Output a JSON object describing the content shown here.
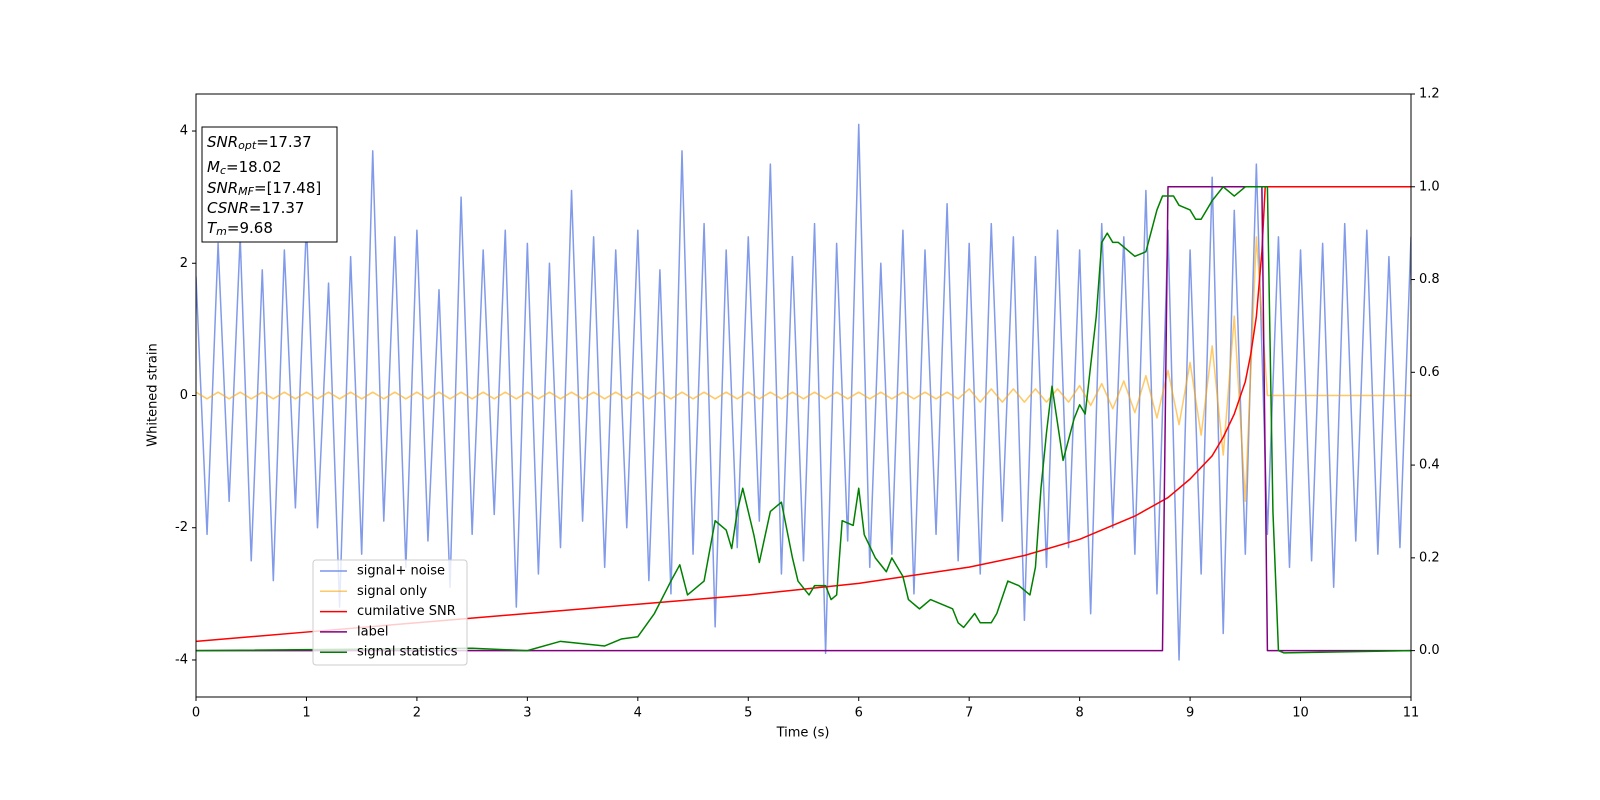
{
  "chart_data": {
    "type": "line",
    "x_label": "Time (s)",
    "y_label": "Whitened strain",
    "xlim": [
      0,
      11
    ],
    "xticks": [
      0,
      1,
      2,
      3,
      4,
      5,
      6,
      7,
      8,
      9,
      10,
      11
    ],
    "ylim": [
      -4.56,
      4.56
    ],
    "yticks": [
      -4,
      -2,
      0,
      2,
      4
    ],
    "y2lim": [
      -0.1,
      1.2
    ],
    "y2ticks": [
      {
        "value": 0,
        "label": "0.0"
      },
      {
        "value": 0.2,
        "label": "0.2"
      },
      {
        "value": 0.4,
        "label": "0.4"
      },
      {
        "value": 0.6,
        "label": "0.6"
      },
      {
        "value": 0.8,
        "label": "0.8"
      },
      {
        "value": 1.0,
        "label": "1.0"
      },
      {
        "value": 1.2,
        "label": "1.2"
      }
    ],
    "annotations": [
      {
        "symbol": "SNR",
        "sub": "opt",
        "text": "=17.37"
      },
      {
        "symbol": "M",
        "sub": "c",
        "text": "=18.02"
      },
      {
        "symbol": "SNR",
        "sub": "MF",
        "text": "=[17.48]"
      },
      {
        "symbol": "CSNR",
        "text": "=17.37"
      },
      {
        "symbol": "T",
        "sub": "m",
        "text": "=9.68"
      }
    ],
    "x": [
      0,
      0.1,
      0.2,
      0.3,
      0.4,
      0.5,
      0.6,
      0.7,
      0.8,
      0.9,
      1,
      1.1,
      1.2,
      1.3,
      1.4,
      1.5,
      1.6,
      1.7,
      1.8,
      1.9,
      2,
      2.1,
      2.2,
      2.3,
      2.4,
      2.5,
      2.6,
      2.7,
      2.8,
      2.9,
      3,
      3.1,
      3.2,
      3.3,
      3.4,
      3.5,
      3.6,
      3.7,
      3.8,
      3.9,
      4,
      4.1,
      4.2,
      4.3,
      4.4,
      4.5,
      4.6,
      4.7,
      4.8,
      4.9,
      5,
      5.1,
      5.2,
      5.3,
      5.4,
      5.5,
      5.6,
      5.7,
      5.8,
      5.9,
      6,
      6.1,
      6.2,
      6.3,
      6.4,
      6.5,
      6.6,
      6.7,
      6.8,
      6.9,
      7,
      7.1,
      7.2,
      7.3,
      7.4,
      7.5,
      7.6,
      7.7,
      7.8,
      7.9,
      8,
      8.1,
      8.2,
      8.3,
      8.4,
      8.5,
      8.6,
      8.7,
      8.8,
      8.9,
      9,
      9.1,
      9.2,
      9.3,
      9.4,
      9.5,
      9.6,
      9.7,
      9.8,
      9.9,
      10,
      10.1,
      10.2,
      10.3,
      10.4,
      10.5,
      10.6,
      10.7,
      10.8,
      10.9,
      11
    ],
    "series": [
      {
        "name": "signal+ noise",
        "color": "#7a95e8",
        "values": [
          1.8,
          -2.1,
          2.3,
          -1.6,
          2.4,
          -2.5,
          1.9,
          -2.8,
          2.2,
          -1.7,
          2.6,
          -2.0,
          1.7,
          -3.2,
          2.1,
          -2.4,
          3.7,
          -1.9,
          2.4,
          -2.6,
          2.5,
          -2.2,
          1.6,
          -2.9,
          3.0,
          -2.1,
          2.2,
          -1.8,
          2.5,
          -3.2,
          2.3,
          -2.7,
          2.0,
          -2.3,
          3.1,
          -1.9,
          2.4,
          -2.6,
          2.2,
          -2.0,
          2.5,
          -2.8,
          1.9,
          -3.0,
          3.7,
          -2.4,
          2.6,
          -3.5,
          2.2,
          -2.3,
          2.4,
          -1.9,
          3.5,
          -2.7,
          2.1,
          -2.5,
          2.6,
          -3.9,
          2.3,
          -2.2,
          4.1,
          -2.6,
          2.0,
          -2.4,
          2.5,
          -3.0,
          2.2,
          -2.1,
          2.9,
          -2.5,
          2.3,
          -2.7,
          2.6,
          -1.9,
          2.4,
          -3.4,
          2.1,
          -2.6,
          2.5,
          -2.3,
          2.2,
          -3.3,
          2.6,
          -2.0,
          2.4,
          -2.4,
          3.1,
          -3.0,
          2.5,
          -4.0,
          2.2,
          -2.7,
          3.3,
          -3.6,
          2.8,
          -2.4,
          3.5,
          -2.1,
          2.4,
          -2.6,
          2.2,
          -2.5,
          2.3,
          -2.9,
          2.6,
          -2.2,
          2.5,
          -2.4,
          2.1,
          -2.3,
          2.4
        ]
      },
      {
        "name": "signal only",
        "color": "#ffa500",
        "values": [
          0.05,
          -0.05,
          0.05,
          -0.05,
          0.05,
          -0.05,
          0.05,
          -0.05,
          0.05,
          -0.05,
          0.05,
          -0.05,
          0.05,
          -0.05,
          0.05,
          -0.05,
          0.05,
          -0.05,
          0.05,
          -0.05,
          0.05,
          -0.05,
          0.05,
          -0.05,
          0.05,
          -0.05,
          0.05,
          -0.05,
          0.05,
          -0.05,
          0.05,
          -0.05,
          0.05,
          -0.05,
          0.05,
          -0.05,
          0.05,
          -0.05,
          0.05,
          -0.05,
          0.05,
          -0.05,
          0.05,
          -0.05,
          0.05,
          -0.05,
          0.05,
          -0.05,
          0.05,
          -0.05,
          0.05,
          -0.05,
          0.05,
          -0.05,
          0.05,
          -0.05,
          0.05,
          -0.05,
          0.05,
          -0.05,
          0.05,
          -0.05,
          0.05,
          -0.05,
          0.05,
          -0.05,
          0.05,
          -0.05,
          0.05,
          -0.05,
          0.1,
          -0.1,
          0.1,
          -0.1,
          0.1,
          -0.1,
          0.1,
          -0.1,
          0.1,
          -0.1,
          0.15,
          -0.15,
          0.18,
          -0.2,
          0.22,
          -0.26,
          0.3,
          -0.34,
          0.38,
          -0.44,
          0.5,
          -0.6,
          0.75,
          -0.9,
          1.2,
          -1.6,
          2.4,
          0,
          0,
          0,
          0,
          0,
          0,
          0,
          0,
          0,
          0,
          0,
          0,
          0,
          0
        ]
      },
      {
        "name": "cumilative SNR",
        "color": "red",
        "axis": "y2",
        "x": [
          0,
          1,
          2,
          3,
          4,
          5,
          6,
          7,
          7.5,
          8,
          8.5,
          8.8,
          9,
          9.2,
          9.3,
          9.4,
          9.5,
          9.55,
          9.6,
          9.65,
          9.68,
          11
        ],
        "values": [
          0.02,
          0.04,
          0.06,
          0.08,
          0.1,
          0.12,
          0.145,
          0.18,
          0.205,
          0.24,
          0.29,
          0.33,
          0.37,
          0.42,
          0.46,
          0.51,
          0.58,
          0.64,
          0.72,
          0.86,
          1.0,
          1.0
        ]
      },
      {
        "name": "label",
        "color": "purple",
        "axis": "y2",
        "x": [
          0,
          8.75,
          8.8,
          9.65,
          9.7,
          11
        ],
        "values": [
          0,
          0,
          1,
          1,
          0,
          0
        ]
      },
      {
        "name": "signal statistics",
        "color": "green",
        "axis": "y2",
        "x": [
          0,
          2.5,
          3,
          3.3,
          3.7,
          3.85,
          4,
          4.15,
          4.3,
          4.38,
          4.45,
          4.6,
          4.7,
          4.8,
          4.85,
          4.9,
          4.95,
          5.05,
          5.1,
          5.2,
          5.3,
          5.4,
          5.45,
          5.55,
          5.6,
          5.7,
          5.75,
          5.8,
          5.85,
          5.95,
          6,
          6.05,
          6.15,
          6.25,
          6.3,
          6.4,
          6.45,
          6.55,
          6.65,
          6.75,
          6.85,
          6.9,
          6.95,
          7.05,
          7.1,
          7.2,
          7.25,
          7.35,
          7.45,
          7.55,
          7.6,
          7.65,
          7.7,
          7.75,
          7.85,
          7.95,
          8,
          8.05,
          8.15,
          8.2,
          8.25,
          8.3,
          8.35,
          8.4,
          8.5,
          8.6,
          8.7,
          8.75,
          8.85,
          8.9,
          9,
          9.05,
          9.1,
          9.2,
          9.3,
          9.4,
          9.5,
          9.6,
          9.65,
          9.7,
          9.75,
          9.8,
          9.85,
          11
        ],
        "values": [
          0,
          0.005,
          0,
          0.02,
          0.01,
          0.025,
          0.03,
          0.08,
          0.15,
          0.185,
          0.12,
          0.15,
          0.28,
          0.26,
          0.22,
          0.3,
          0.35,
          0.25,
          0.19,
          0.3,
          0.32,
          0.2,
          0.15,
          0.12,
          0.14,
          0.14,
          0.11,
          0.12,
          0.28,
          0.27,
          0.35,
          0.25,
          0.2,
          0.17,
          0.2,
          0.16,
          0.11,
          0.09,
          0.11,
          0.1,
          0.09,
          0.06,
          0.05,
          0.08,
          0.06,
          0.06,
          0.08,
          0.15,
          0.14,
          0.12,
          0.18,
          0.35,
          0.47,
          0.57,
          0.41,
          0.5,
          0.53,
          0.51,
          0.72,
          0.88,
          0.9,
          0.88,
          0.88,
          0.87,
          0.85,
          0.86,
          0.95,
          0.98,
          0.98,
          0.96,
          0.95,
          0.93,
          0.93,
          0.97,
          1.0,
          0.98,
          1.0,
          1.0,
          1.0,
          1.0,
          0.3,
          0,
          -0.005,
          0
        ]
      }
    ]
  }
}
